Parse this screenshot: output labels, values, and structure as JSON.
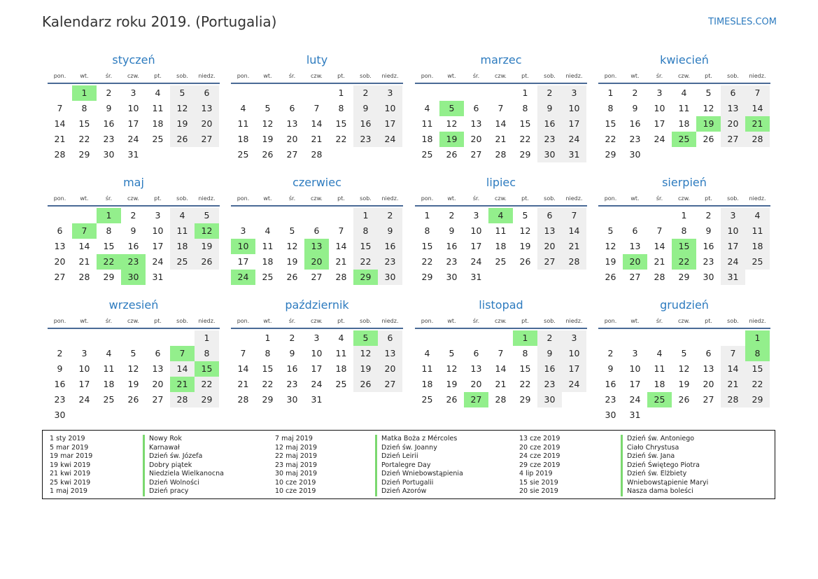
{
  "header": {
    "title": "Kalendarz roku 2019. (Portugalia)",
    "site": "TIMESLES.COM"
  },
  "weekdays": [
    "pon.",
    "wt.",
    "śr.",
    "czw.",
    "pt.",
    "sob.",
    "niedz."
  ],
  "months": [
    {
      "name": "styczeń",
      "offset": 1,
      "days": 31,
      "holidays": [
        1
      ]
    },
    {
      "name": "luty",
      "offset": 4,
      "days": 28,
      "holidays": []
    },
    {
      "name": "marzec",
      "offset": 4,
      "days": 31,
      "holidays": [
        5,
        19
      ]
    },
    {
      "name": "kwiecień",
      "offset": 0,
      "days": 30,
      "holidays": [
        19,
        21,
        25
      ]
    },
    {
      "name": "maj",
      "offset": 2,
      "days": 31,
      "holidays": [
        1,
        7,
        12,
        22,
        23,
        30
      ]
    },
    {
      "name": "czerwiec",
      "offset": 5,
      "days": 30,
      "holidays": [
        10,
        13,
        20,
        24,
        29
      ]
    },
    {
      "name": "lipiec",
      "offset": 0,
      "days": 31,
      "holidays": [
        4
      ]
    },
    {
      "name": "sierpień",
      "offset": 3,
      "days": 31,
      "holidays": [
        15,
        20,
        22
      ]
    },
    {
      "name": "wrzesień",
      "offset": 6,
      "days": 30,
      "holidays": [
        7,
        15,
        21
      ]
    },
    {
      "name": "październik",
      "offset": 1,
      "days": 31,
      "holidays": [
        5
      ]
    },
    {
      "name": "listopad",
      "offset": 4,
      "days": 30,
      "holidays": [
        1,
        27
      ]
    },
    {
      "name": "grudzień",
      "offset": 6,
      "days": 31,
      "holidays": [
        1,
        8,
        25
      ]
    }
  ],
  "legend": [
    {
      "dates": [
        "1 sty 2019",
        "5 mar 2019",
        "19 mar 2019",
        "19 kwi 2019",
        "21 kwi 2019",
        "25 kwi 2019",
        "1 maj 2019"
      ],
      "names": [
        "Nowy Rok",
        "Karnawał",
        "Dzień św. Józefa",
        "Dobry piątek",
        "Niedziela Wielkanocna",
        "Dzień Wolności",
        "Dzień pracy"
      ]
    },
    {
      "dates": [
        "7 maj 2019",
        "12 maj 2019",
        "22 maj 2019",
        "23 maj 2019",
        "30 maj 2019",
        "10 cze 2019",
        "10 cze 2019"
      ],
      "names": [
        "Matka Boża z Mércoles",
        "Dzień św. Joanny",
        "Dzień Leirii",
        "Portalegre Day",
        "Dzień Wniebowstąpienia",
        "Dzień Portugalii",
        "Dzień Azorów"
      ]
    },
    {
      "dates": [
        "13 cze 2019",
        "20 cze 2019",
        "24 cze 2019",
        "29 cze 2019",
        "4 lip 2019",
        "15 sie 2019",
        "20 sie 2019"
      ],
      "names": [
        "Dzień św. Antoniego",
        "Ciało Chrystusa",
        "Dzień św. Jana",
        "Dzień Świętego Piotra",
        "Dzień św. Elżbiety",
        "Wniebowstąpienie Maryi",
        "Nasza dama boleści"
      ]
    }
  ]
}
